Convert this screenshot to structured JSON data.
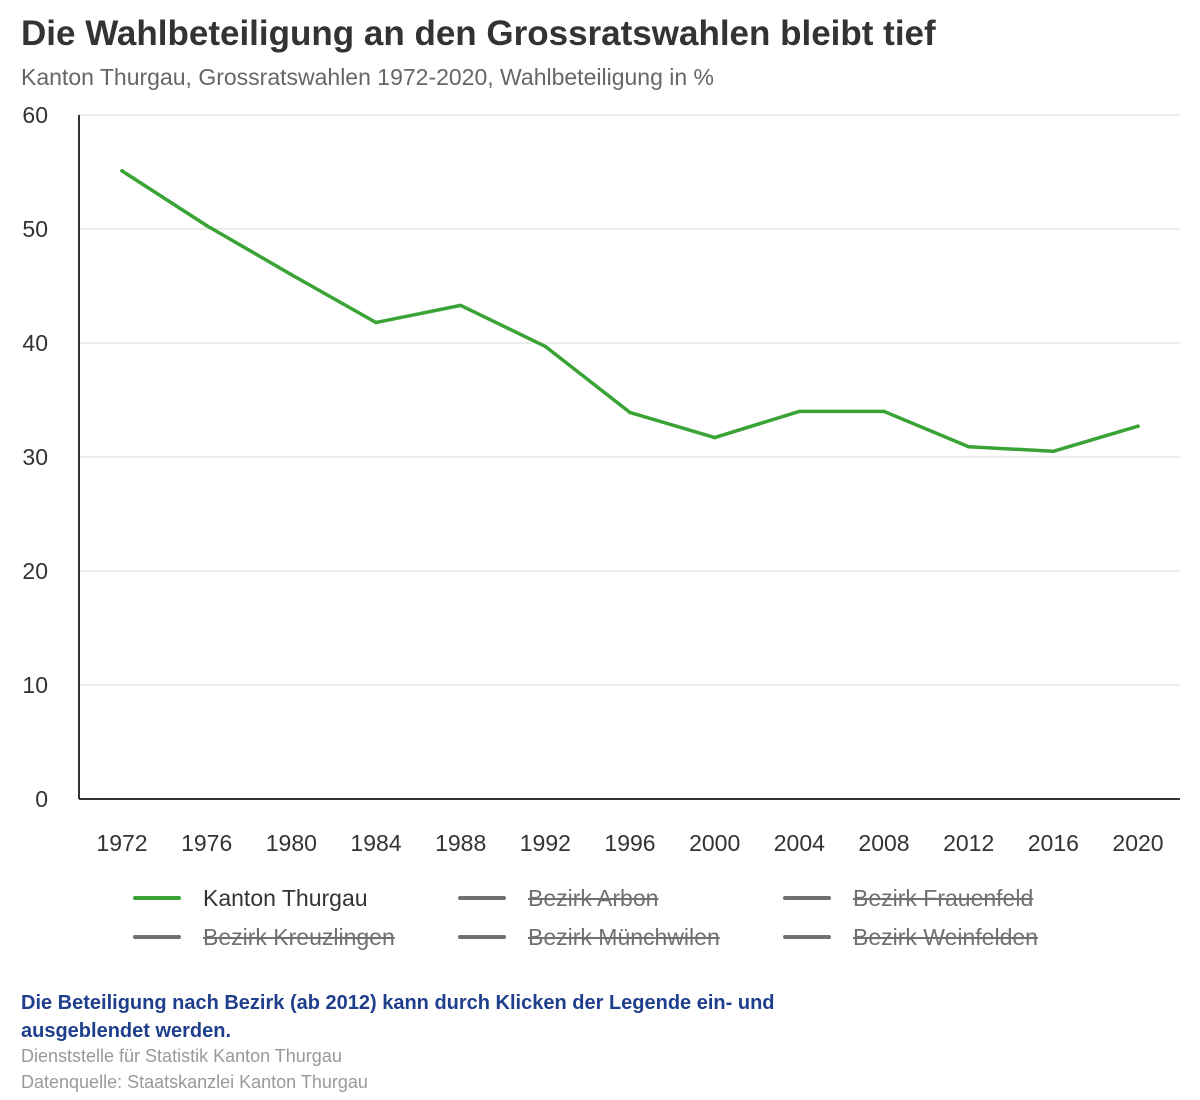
{
  "header": {
    "title": "Die Wahlbeteiligung an den Grossratswahlen bleibt tief",
    "subtitle": "Kanton Thurgau, Grossratswahlen 1972-2020, Wahlbeteiligung in %"
  },
  "colors": {
    "series_kanton": "#3aa335",
    "hidden_series": "#707070",
    "note_text": "#1f3f8c",
    "credits_text": "#999999"
  },
  "chart_data": {
    "type": "line",
    "title": "Die Wahlbeteiligung an den Grossratswahlen bleibt tief",
    "subtitle": "Kanton Thurgau, Grossratswahlen 1972-2020, Wahlbeteiligung in %",
    "xlabel": "",
    "ylabel": "",
    "categories": [
      "1972",
      "1976",
      "1980",
      "1984",
      "1988",
      "1992",
      "1996",
      "2000",
      "2004",
      "2008",
      "2012",
      "2016",
      "2020"
    ],
    "ylim": [
      0,
      60
    ],
    "yticks": [
      0,
      10,
      20,
      30,
      40,
      50,
      60
    ],
    "grid": true,
    "legend_position": "bottom",
    "series": [
      {
        "name": "Kanton Thurgau",
        "visible": true,
        "values": [
          55.1,
          50.3,
          46.0,
          41.8,
          43.3,
          39.7,
          33.9,
          31.7,
          34.0,
          34.0,
          30.9,
          30.5,
          32.7
        ]
      },
      {
        "name": "Bezirk Arbon",
        "visible": false
      },
      {
        "name": "Bezirk Frauenfeld",
        "visible": false
      },
      {
        "name": "Bezirk Kreuzlingen",
        "visible": false
      },
      {
        "name": "Bezirk Münchwilen",
        "visible": false
      },
      {
        "name": "Bezirk Weinfelden",
        "visible": false
      }
    ]
  },
  "legend": [
    {
      "label": "Kanton Thurgau",
      "visible": true
    },
    {
      "label": "Bezirk Arbon",
      "visible": false
    },
    {
      "label": "Bezirk Frauenfeld",
      "visible": false
    },
    {
      "label": "Bezirk Kreuzlingen",
      "visible": false
    },
    {
      "label": "Bezirk Münchwilen",
      "visible": false
    },
    {
      "label": "Bezirk Weinfelden",
      "visible": false
    }
  ],
  "footer": {
    "note": "Die Beteiligung nach Bezirk (ab 2012) kann durch Klicken der Legende ein- und ausgeblendet werden.",
    "credit_line1": "Dienststelle für Statistik Kanton Thurgau",
    "credit_line2": "Datenquelle: Staatskanzlei Kanton Thurgau"
  }
}
